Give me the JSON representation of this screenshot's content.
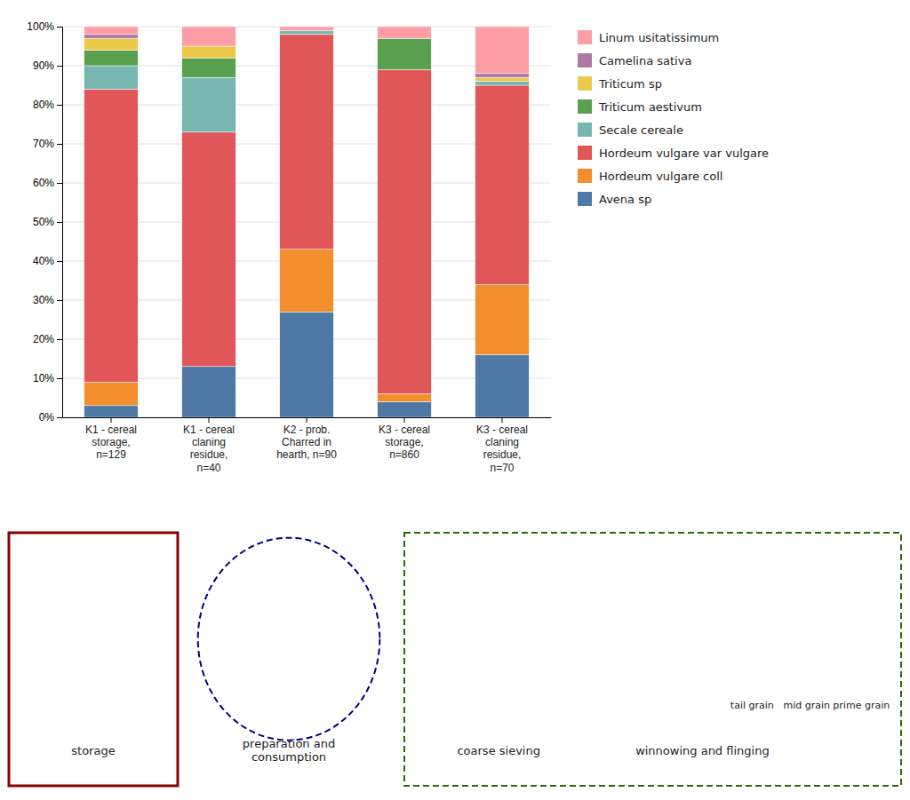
{
  "chart_data": {
    "type": "bar",
    "stacked": true,
    "categories": [
      "K1 - cereal\nstorage,\nn=129",
      "K1 - cereal\nclaning\nresidue,\nn=40",
      "K2 - prob.\nCharred in\nhearth, n=90",
      "K3 - cereal\nstorage,\nn=860",
      "K3 - cereal\nclaning\nresidue,\nn=70"
    ],
    "series": [
      {
        "name": "Avena sp",
        "values": [
          3.0,
          13.0,
          27.0,
          4.0,
          16.0
        ]
      },
      {
        "name": "Hordeum vulgare coll",
        "values": [
          6.0,
          0.0,
          16.0,
          2.0,
          18.0
        ]
      },
      {
        "name": "Hordeum vulgare var vulgare",
        "values": [
          75.0,
          60.0,
          55.0,
          83.0,
          51.0
        ]
      },
      {
        "name": "Secale cereale",
        "values": [
          6.0,
          14.0,
          1.0,
          0.0,
          1.0
        ]
      },
      {
        "name": "Triticum aestivum",
        "values": [
          4.0,
          5.0,
          0.0,
          8.0,
          0.0
        ]
      },
      {
        "name": "Triticum sp",
        "values": [
          3.0,
          3.0,
          0.0,
          0.0,
          1.0
        ]
      },
      {
        "name": "Camelina sativa",
        "values": [
          1.0,
          0.0,
          0.0,
          0.0,
          1.0
        ]
      },
      {
        "name": "Linum usitatissimum",
        "values": [
          2.0,
          5.0,
          1.0,
          3.0,
          12.0
        ]
      }
    ],
    "ylim": [
      0,
      100
    ],
    "yticks": [
      {
        "value": 0,
        "label": "0%"
      },
      {
        "value": 10,
        "label": "10%"
      },
      {
        "value": 20,
        "label": "20%"
      },
      {
        "value": 30,
        "label": "30%"
      },
      {
        "value": 40,
        "label": "40%"
      },
      {
        "value": 50,
        "label": "50%"
      },
      {
        "value": 60,
        "label": "60%"
      },
      {
        "value": 70,
        "label": "70%"
      },
      {
        "value": 80,
        "label": "80%"
      },
      {
        "value": 90,
        "label": "90%"
      },
      {
        "value": 100,
        "label": "100%"
      }
    ],
    "grid": true,
    "legend": "right",
    "annotations": [
      {
        "text": "storage",
        "color": "#8B0000"
      },
      {
        "text": "preparation and\nconsumption",
        "color": "#000080"
      },
      {
        "text": "coarse sieving",
        "color": "#2d6a00"
      },
      {
        "text": "winnowing and flinging",
        "color": "#2d6a00"
      },
      {
        "text": "tail grain",
        "color": "#2d6a00"
      },
      {
        "text": "mid grain",
        "color": "#2d6a00"
      },
      {
        "text": "prime grain",
        "color": "#2d6a00"
      }
    ]
  }
}
